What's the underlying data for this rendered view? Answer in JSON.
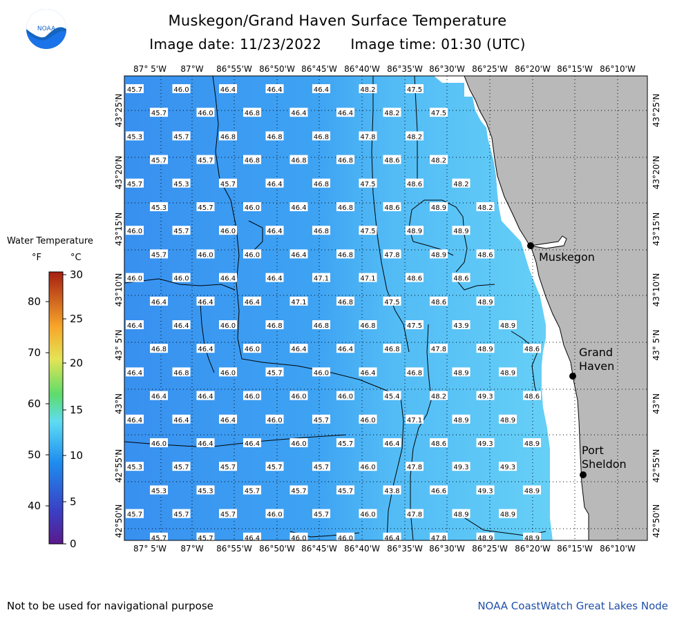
{
  "header": {
    "title": "Muskegon/Grand Haven Surface Temperature",
    "date_label": "Image date: 11/23/2022",
    "time_label": "Image time: 01:30 (UTC)",
    "logo_text": "NOAA"
  },
  "footer": {
    "disclaimer": "Not to be used for navigational purpose",
    "credit": "NOAA CoastWatch Great Lakes Node"
  },
  "legend": {
    "title": "Water Temperature",
    "unit_f": "°F",
    "unit_c": "°C",
    "f_ticks": [
      "80",
      "70",
      "60",
      "50",
      "40"
    ],
    "c_ticks": [
      "30",
      "25",
      "20",
      "15",
      "10",
      "5",
      "0"
    ],
    "range_c": [
      0,
      30
    ]
  },
  "axes": {
    "lon_labels": [
      "87° 5'W",
      "87°W",
      "86°55'W",
      "86°50'W",
      "86°45'W",
      "86°40'W",
      "86°35'W",
      "86°30'W",
      "86°25'W",
      "86°20'W",
      "86°15'W",
      "86°10'W"
    ],
    "lat_labels": [
      "43°25'N",
      "43°20'N",
      "43°15'N",
      "43°10'N",
      "43° 5'N",
      "43°N",
      "42°55'N",
      "42°50'N"
    ]
  },
  "places": [
    {
      "name": "Muskegon",
      "label": "Muskegon"
    },
    {
      "name": "Grand Haven",
      "label": "Grand\nHaven"
    },
    {
      "name": "Port Sheldon",
      "label": "Port\nSheldon"
    }
  ],
  "colors": {
    "water_cold": "#3a94f2",
    "water_warm": "#5ec8f6",
    "land": "#b9b9b9",
    "coast_strip": "#ffffff"
  },
  "temps": [
    [
      "45.7",
      "46.0",
      "46.4",
      "46.4",
      "46.4",
      "48.2",
      "47.5"
    ],
    [
      "45.7",
      "46.0",
      "46.8",
      "46.4",
      "46.4",
      "48.2",
      "47.5"
    ],
    [
      "45.3",
      "45.7",
      "46.8",
      "46.8",
      "46.8",
      "47.8",
      "48.2"
    ],
    [
      "45.7",
      "45.7",
      "46.8",
      "46.8",
      "46.8",
      "48.6",
      "48.2"
    ],
    [
      "45.7",
      "45.3",
      "45.7",
      "46.4",
      "46.8",
      "47.5",
      "48.6",
      "48.2"
    ],
    [
      "45.3",
      "45.7",
      "46.0",
      "46.4",
      "46.8",
      "48.6",
      "48.9",
      "48.2"
    ],
    [
      "46.0",
      "45.7",
      "46.0",
      "46.4",
      "46.8",
      "47.5",
      "48.9",
      "48.9"
    ],
    [
      "45.7",
      "46.0",
      "46.0",
      "46.4",
      "46.8",
      "47.8",
      "48.9",
      "48.6"
    ],
    [
      "46.0",
      "46.0",
      "46.4",
      "46.4",
      "47.1",
      "47.1",
      "48.6",
      "48.6"
    ],
    [
      "46.4",
      "46.4",
      "46.4",
      "47.1",
      "46.8",
      "47.5",
      "48.6",
      "48.9"
    ],
    [
      "46.4",
      "46.4",
      "46.0",
      "46.8",
      "46.8",
      "46.8",
      "47.5",
      "43.9",
      "48.9"
    ],
    [
      "46.8",
      "46.4",
      "46.0",
      "46.4",
      "46.4",
      "46.8",
      "47.8",
      "48.9",
      "48.6"
    ],
    [
      "46.4",
      "46.8",
      "46.0",
      "45.7",
      "46.0",
      "46.4",
      "46.8",
      "48.9",
      "48.9"
    ],
    [
      "46.4",
      "46.4",
      "46.0",
      "46.0",
      "46.0",
      "45.4",
      "48.2",
      "49.3",
      "48.6"
    ],
    [
      "46.4",
      "46.4",
      "46.4",
      "46.0",
      "45.7",
      "46.0",
      "47.1",
      "48.9",
      "48.9"
    ],
    [
      "46.0",
      "46.4",
      "46.4",
      "46.0",
      "45.7",
      "46.4",
      "48.6",
      "49.3",
      "48.9"
    ],
    [
      "45.3",
      "45.7",
      "45.7",
      "45.7",
      "45.7",
      "46.0",
      "47.8",
      "49.3",
      "49.3"
    ],
    [
      "45.3",
      "45.3",
      "45.7",
      "45.7",
      "45.7",
      "43.8",
      "46.6",
      "49.3",
      "48.9"
    ],
    [
      "45.7",
      "45.7",
      "45.7",
      "46.0",
      "45.7",
      "46.0",
      "47.8",
      "48.9",
      "48.9"
    ],
    [
      "45.7",
      "45.7",
      "46.4",
      "46.0",
      "46.0",
      "46.4",
      "47.8",
      "48.9",
      "48.9"
    ]
  ]
}
